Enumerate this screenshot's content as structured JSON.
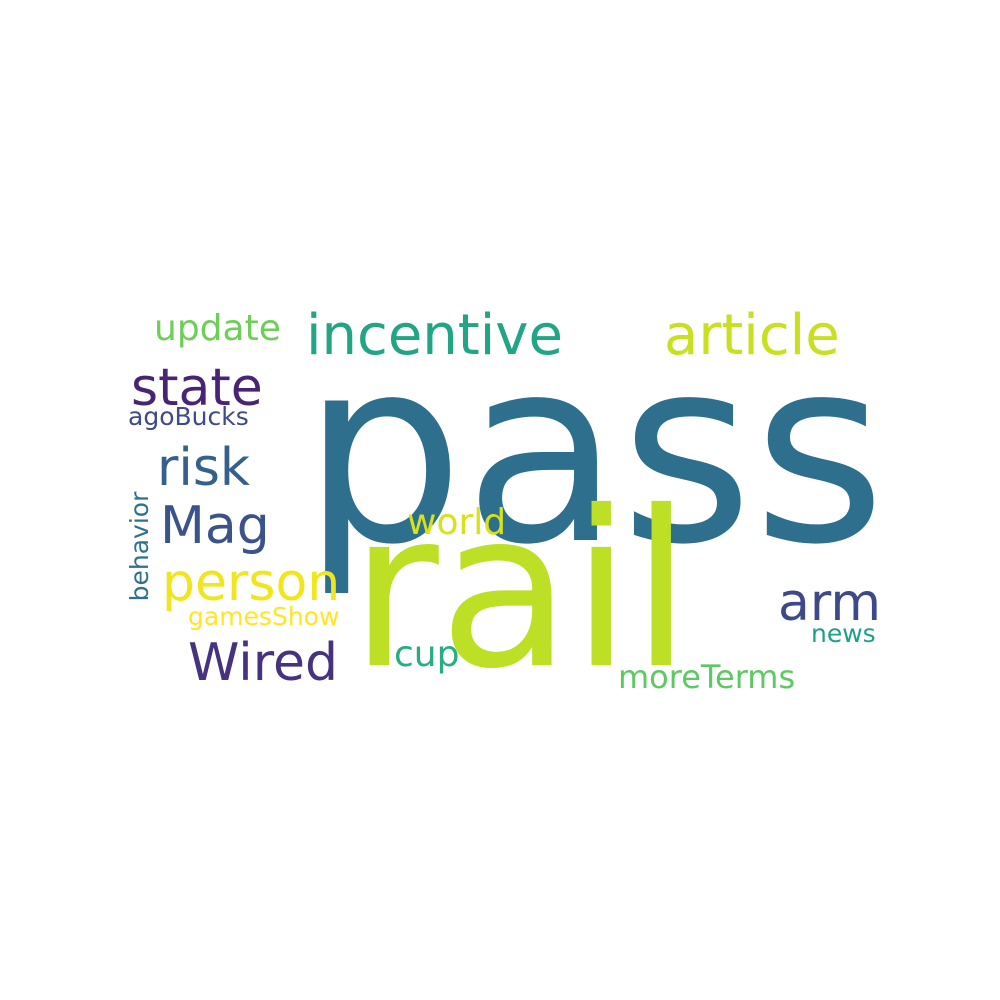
{
  "words": {
    "pass": {
      "text": "pass",
      "color": "#2e6f8e"
    },
    "rail": {
      "text": "rail",
      "color": "#bddf26"
    },
    "incentive": {
      "text": "incentive",
      "color": "#21a585"
    },
    "article": {
      "text": "article",
      "color": "#c8e020"
    },
    "update": {
      "text": "update",
      "color": "#6ece58"
    },
    "state": {
      "text": "state",
      "color": "#482475"
    },
    "agoBucks": {
      "text": "agoBucks",
      "color": "#3e4a89"
    },
    "risk": {
      "text": "risk",
      "color": "#355f8d"
    },
    "Mag": {
      "text": "Mag",
      "color": "#3b528b"
    },
    "world": {
      "text": "world",
      "color": "#d8e219"
    },
    "person": {
      "text": "person",
      "color": "#f1e51d"
    },
    "gamesShow": {
      "text": "gamesShow",
      "color": "#fde725"
    },
    "Wired": {
      "text": "Wired",
      "color": "#46327e"
    },
    "cup": {
      "text": "cup",
      "color": "#26ad81"
    },
    "arm": {
      "text": "arm",
      "color": "#3e4989"
    },
    "news": {
      "text": "news",
      "color": "#1f9e89"
    },
    "moreTerms": {
      "text": "moreTerms",
      "color": "#5ec962"
    },
    "behavior": {
      "text": "behavior",
      "color": "#2c728e"
    }
  }
}
